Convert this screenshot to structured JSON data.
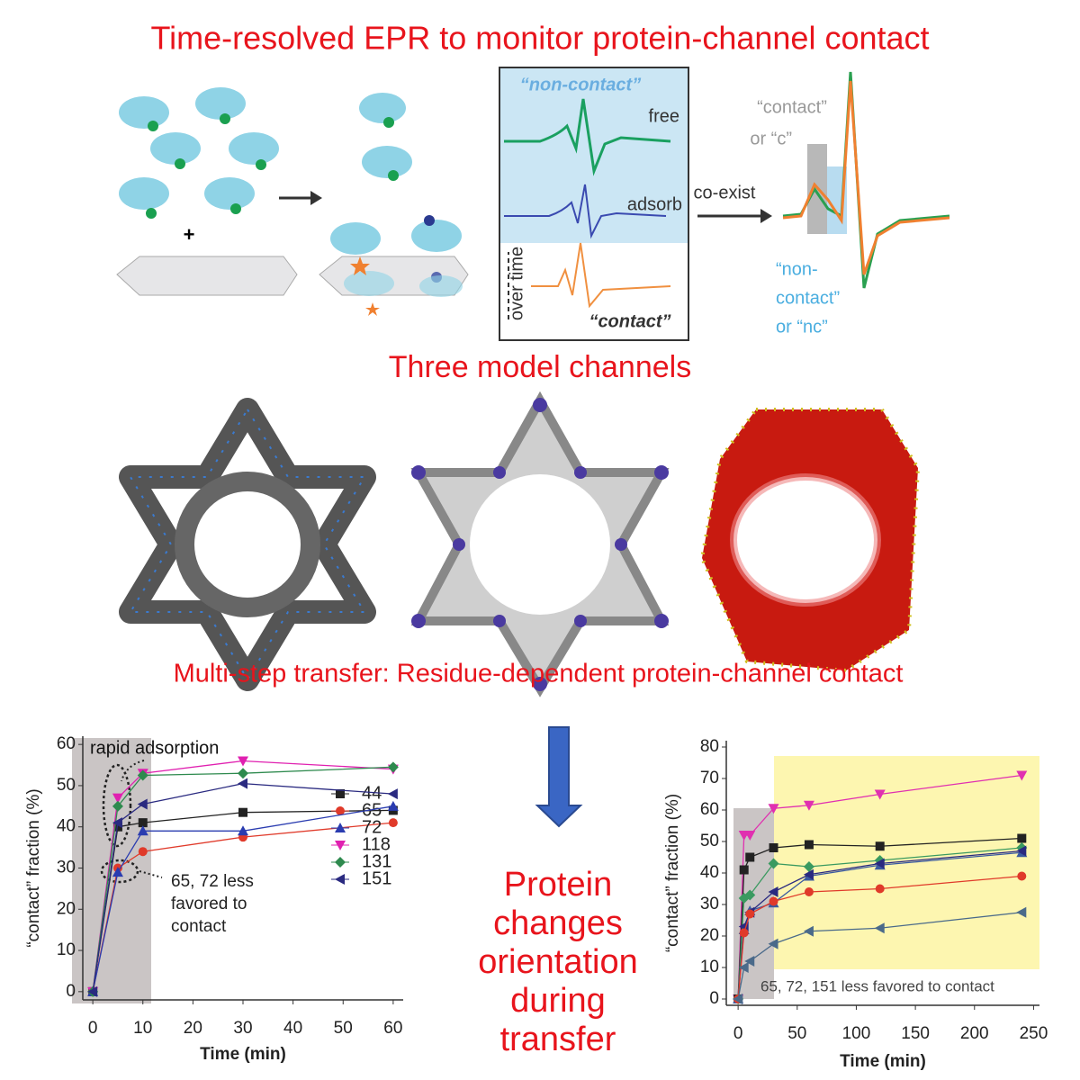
{
  "title": "Time-resolved EPR to monitor protein-channel contact",
  "epr": {
    "non_contact": "“non-contact”",
    "free": "free",
    "adsorb": "adsorb",
    "over_time": "over time",
    "contact": "“contact”",
    "co_exist": "co-exist",
    "contact_label": [
      "“contact”",
      "or “c”"
    ],
    "non_contact_label": [
      "“non-",
      "contact”",
      "or “nc”"
    ],
    "plus": "+"
  },
  "channels_heading": "Three model channels",
  "transfer_heading": "Multi-step transfer: Residue-dependent protein-channel contact",
  "conclusion": [
    "Protein",
    "changes",
    "orientation",
    "during",
    "transfer"
  ],
  "chart_data": [
    {
      "type": "line",
      "xlabel": "Time (min)",
      "ylabel": "“contact” fraction (%)",
      "x": [
        0,
        5,
        10,
        30,
        60
      ],
      "xlim": [
        -2,
        62
      ],
      "xticks": [
        0,
        10,
        20,
        30,
        40,
        50,
        60
      ],
      "ylim": [
        -2,
        62
      ],
      "yticks": [
        0,
        10,
        20,
        30,
        40,
        50,
        60
      ],
      "annotations": [
        [
          "rapid adsorption"
        ],
        [
          "65, 72 less",
          "favored to",
          "contact"
        ]
      ],
      "series": [
        {
          "name": "44",
          "color": "#222222",
          "marker": "square",
          "values": [
            0,
            40,
            41,
            43.5,
            44
          ]
        },
        {
          "name": "65",
          "color": "#e03a2a",
          "marker": "circle",
          "values": [
            0,
            30,
            34,
            37.5,
            41
          ]
        },
        {
          "name": "72",
          "color": "#2a3cb0",
          "marker": "triangle-up",
          "values": [
            0,
            29,
            39,
            39,
            45
          ]
        },
        {
          "name": "118",
          "color": "#e020b0",
          "marker": "triangle-down",
          "values": [
            0,
            47,
            53,
            56,
            54
          ]
        },
        {
          "name": "131",
          "color": "#2e8a4e",
          "marker": "diamond",
          "values": [
            0,
            45,
            52.5,
            53,
            54.5
          ]
        },
        {
          "name": "151",
          "color": "#2a2a80",
          "marker": "triangle-left",
          "values": [
            0,
            41,
            45.5,
            50.5,
            48
          ]
        }
      ]
    },
    {
      "type": "line",
      "xlabel": "Time (min)",
      "ylabel": "“contact” fraction (%)",
      "x": [
        0,
        5,
        10,
        30,
        60,
        120,
        240
      ],
      "xlim": [
        -10,
        255
      ],
      "xticks": [
        0,
        50,
        100,
        150,
        200,
        250
      ],
      "ylim": [
        -2,
        82
      ],
      "yticks": [
        0,
        10,
        20,
        30,
        40,
        50,
        60,
        70,
        80
      ],
      "annotations": [
        [
          "65, 72, 151 less favored to contact"
        ]
      ],
      "series": [
        {
          "color": "#e030b0",
          "marker": "triangle-down",
          "values": [
            0,
            52,
            52,
            60.5,
            61.5,
            65,
            71
          ]
        },
        {
          "color": "#222222",
          "marker": "square",
          "values": [
            0,
            41,
            45,
            48,
            49,
            48.5,
            51
          ]
        },
        {
          "color": "#3a5aa0",
          "marker": "triangle-up",
          "values": [
            0,
            22,
            28,
            30.5,
            39,
            42.5,
            46.5
          ]
        },
        {
          "color": "#3a9a60",
          "marker": "diamond",
          "values": [
            0,
            32,
            33,
            43,
            42,
            44,
            48
          ]
        },
        {
          "color": "#2a2a80",
          "marker": "triangle-left",
          "values": [
            0,
            23,
            27.5,
            34,
            39.5,
            43,
            47
          ]
        },
        {
          "color": "#e03a2a",
          "marker": "circle",
          "values": [
            0,
            21,
            27,
            31,
            34,
            35,
            39
          ]
        },
        {
          "color": "#4a6a8a",
          "marker": "triangle-left",
          "values": [
            0,
            10,
            12,
            17.5,
            21.5,
            22.5,
            27.5
          ]
        }
      ]
    }
  ]
}
